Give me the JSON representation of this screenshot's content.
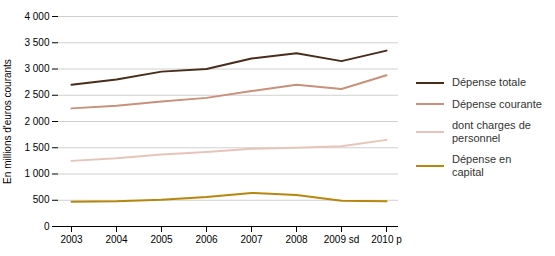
{
  "chart_data": {
    "type": "line",
    "categories": [
      "2003",
      "2004",
      "2005",
      "2006",
      "2007",
      "2008",
      "2009 sd",
      "2010 p"
    ],
    "series": [
      {
        "name": "Dépense totale",
        "color": "#4a2c1a",
        "values": [
          2700,
          2800,
          2950,
          3000,
          3200,
          3300,
          3150,
          3350
        ]
      },
      {
        "name": "Dépense courante",
        "color": "#c9907a",
        "values": [
          2250,
          2300,
          2380,
          2450,
          2580,
          2700,
          2620,
          2880
        ]
      },
      {
        "name": "dont charges de\npersonnel",
        "color": "#e8c4b8",
        "values": [
          1250,
          1300,
          1370,
          1420,
          1480,
          1500,
          1530,
          1650
        ]
      },
      {
        "name": "Dépense en\ncapital",
        "color": "#b8860b",
        "values": [
          470,
          480,
          510,
          560,
          640,
          600,
          490,
          480
        ]
      }
    ],
    "ylabel": "En millions d'euros courants",
    "ylim": [
      0,
      4000
    ],
    "yticks": [
      0,
      500,
      {
        "value": 1000,
        "label": "1 000"
      },
      {
        "value": 1500,
        "label": "1 500"
      },
      {
        "value": 2000,
        "label": "2 000"
      },
      {
        "value": 2500,
        "label": "2 500"
      },
      {
        "value": 3000,
        "label": "3 000"
      },
      {
        "value": 3500,
        "label": "3 500"
      },
      {
        "value": 4000,
        "label": "4 000"
      }
    ],
    "grid": true,
    "legend": "right"
  }
}
